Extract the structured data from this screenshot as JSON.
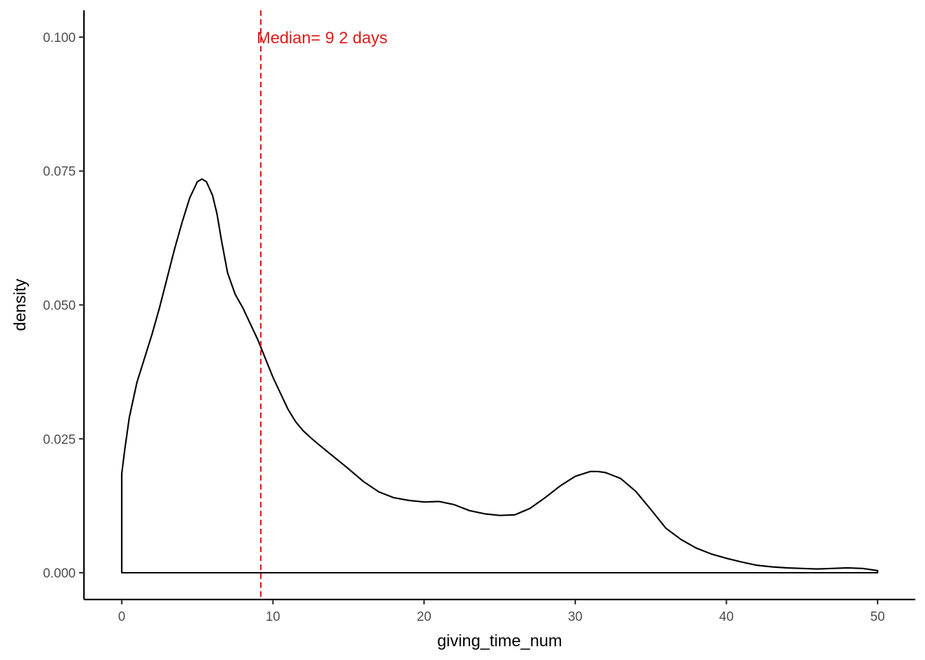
{
  "chart_data": {
    "type": "area",
    "xlabel": "giving_time_num",
    "ylabel": "density",
    "xlim": [
      -2.5,
      52.5
    ],
    "ylim": [
      -0.005,
      0.105
    ],
    "x_ticks": [
      0,
      10,
      20,
      30,
      40,
      50
    ],
    "x_tick_labels": [
      "0",
      "10",
      "20",
      "30",
      "40",
      "50"
    ],
    "y_ticks": [
      0,
      0.025,
      0.05,
      0.075,
      0.1
    ],
    "y_tick_labels": [
      "0.000",
      "0.025",
      "0.050",
      "0.075",
      "0.100"
    ],
    "grid": false,
    "series": [
      {
        "x": [
          0,
          0.2,
          0.5,
          1.0,
          1.5,
          2.0,
          2.5,
          3.0,
          3.5,
          4.0,
          4.5,
          5.0,
          5.3,
          5.6,
          6.0,
          6.3,
          6.6,
          7.0,
          7.5,
          8.0,
          8.5,
          9.0,
          9.5,
          10.0,
          10.5,
          11.0,
          11.5,
          12.0,
          12.5,
          13.0,
          14.0,
          15.0,
          16.0,
          17.0,
          18.0,
          19.0,
          20.0,
          21.0,
          22.0,
          23.0,
          24.0,
          25.0,
          26.0,
          27.0,
          28.0,
          29.0,
          30.0,
          31.0,
          31.5,
          32.0,
          33.0,
          34.0,
          35.0,
          36.0,
          37.0,
          38.0,
          39.0,
          40.0,
          41.0,
          42.0,
          43.0,
          44.0,
          45.0,
          46.0,
          47.0,
          48.0,
          49.0,
          50.0
        ],
        "y": [
          0.0185,
          0.023,
          0.029,
          0.0355,
          0.04,
          0.0445,
          0.0495,
          0.055,
          0.0605,
          0.0655,
          0.07,
          0.073,
          0.0735,
          0.073,
          0.0705,
          0.067,
          0.062,
          0.056,
          0.052,
          0.0495,
          0.0465,
          0.0435,
          0.04,
          0.0365,
          0.0335,
          0.0305,
          0.0282,
          0.0265,
          0.0252,
          0.024,
          0.0217,
          0.0194,
          0.017,
          0.0151,
          0.014,
          0.0135,
          0.0132,
          0.0133,
          0.0127,
          0.0116,
          0.011,
          0.0107,
          0.0108,
          0.012,
          0.014,
          0.0162,
          0.018,
          0.0189,
          0.0189,
          0.0187,
          0.0176,
          0.0152,
          0.0118,
          0.0083,
          0.0062,
          0.0046,
          0.0035,
          0.0027,
          0.002,
          0.0014,
          0.0011,
          0.0009,
          0.0008,
          0.0007,
          0.0008,
          0.0009,
          0.0008,
          0.0004
        ]
      }
    ],
    "annotation": {
      "text": "Median= 9 2 days",
      "x_value": 9.2,
      "y_value": 0.1,
      "color": "#E41A1C"
    },
    "reference_line": {
      "x": 9.2,
      "style": "dashed",
      "color": "#E41A1C"
    }
  }
}
